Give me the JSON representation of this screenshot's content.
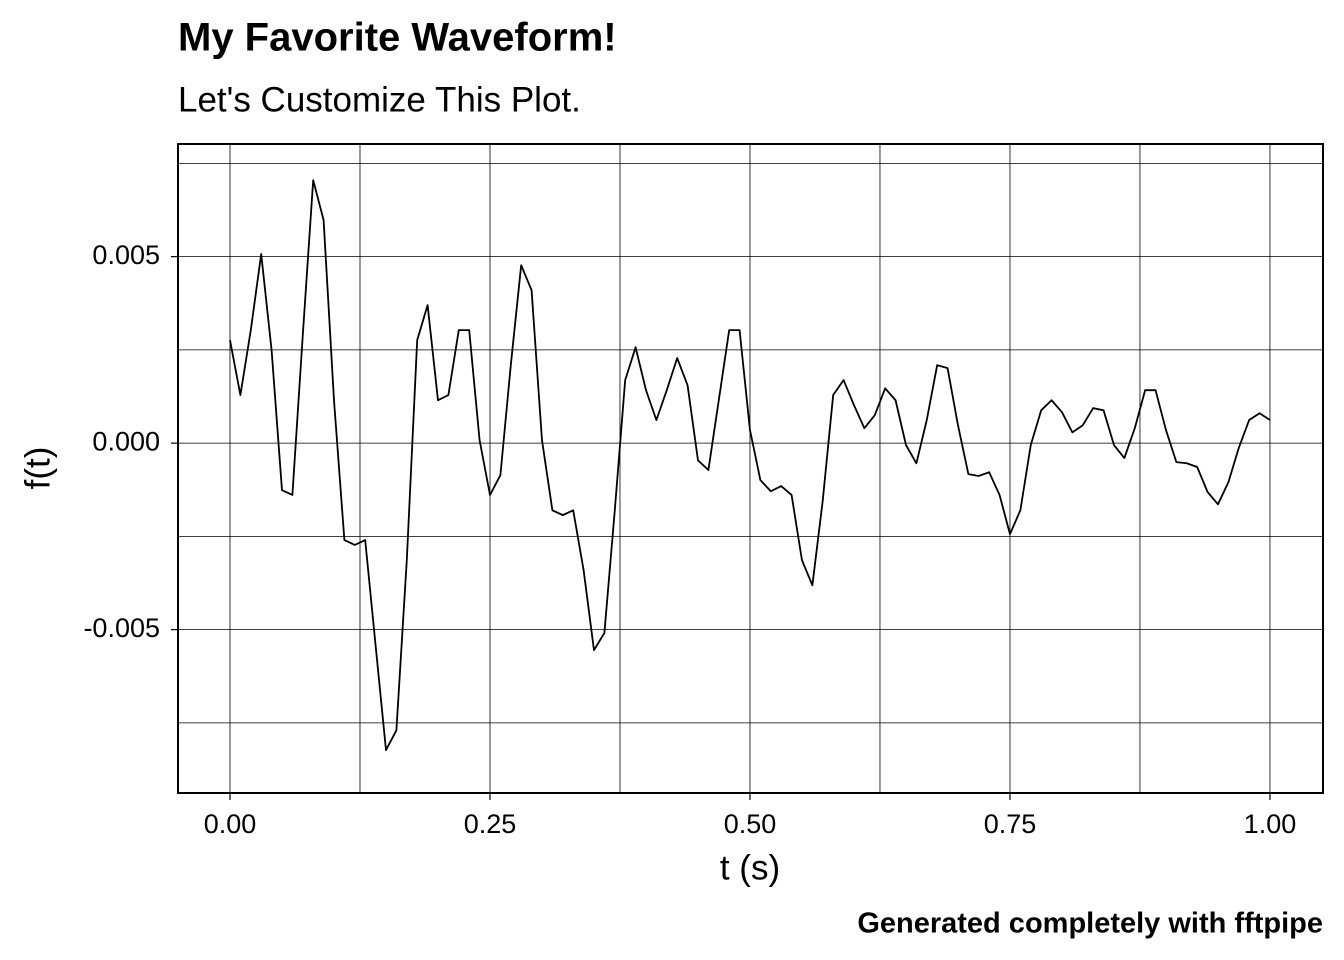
{
  "chart_data": {
    "type": "line",
    "title": "My Favorite Waveform!",
    "subtitle": "Let's Customize This Plot.",
    "x_label": "t (s)",
    "y_label": "f(t)",
    "caption": "Generated completely with fftpipe",
    "caption_color": "#0000ff",
    "x": [
      0,
      0.01,
      0.02,
      0.03,
      0.04,
      0.05,
      0.06,
      0.07,
      0.08,
      0.09,
      0.1,
      0.11,
      0.12,
      0.13,
      0.14,
      0.15,
      0.16,
      0.17,
      0.18,
      0.19,
      0.2,
      0.21,
      0.22,
      0.23,
      0.24,
      0.25,
      0.26,
      0.27,
      0.28,
      0.29,
      0.3,
      0.31,
      0.32,
      0.33,
      0.34,
      0.35,
      0.36,
      0.37,
      0.38,
      0.39,
      0.4,
      0.41,
      0.42,
      0.43,
      0.44,
      0.45,
      0.46,
      0.47,
      0.48,
      0.49,
      0.5,
      0.51,
      0.52,
      0.53,
      0.54,
      0.55,
      0.56,
      0.57,
      0.58,
      0.59,
      0.6,
      0.61,
      0.62,
      0.63,
      0.64,
      0.65,
      0.66,
      0.67,
      0.68,
      0.69,
      0.7,
      0.71,
      0.72,
      0.73,
      0.74,
      0.75,
      0.76,
      0.77,
      0.78,
      0.79,
      0.8,
      0.81,
      0.82,
      0.83,
      0.84,
      0.85,
      0.86,
      0.87,
      0.88,
      0.89,
      0.9,
      0.91,
      0.92,
      0.93,
      0.94,
      0.95,
      0.96,
      0.97,
      0.98,
      0.99,
      1
    ],
    "series": [
      {
        "color": "#000000",
        "values": [
          0.00276,
          0.00129,
          0.00303,
          0.00507,
          0.00249,
          -0.00126,
          -0.00139,
          0.0029,
          0.00705,
          0.00598,
          0.00115,
          -0.0026,
          -0.00273,
          -0.0026,
          -0.00542,
          -0.00823,
          -0.0077,
          -0.00314,
          0.00276,
          0.0037,
          0.00115,
          0.00129,
          0.00303,
          0.00303,
          8e-05,
          -0.00139,
          -0.00086,
          0.00209,
          0.00477,
          0.0041,
          8e-05,
          -0.0018,
          -0.00193,
          -0.0018,
          -0.0034,
          -0.00555,
          -0.00509,
          -0.0018,
          0.00169,
          0.00257,
          0.00142,
          0.00062,
          0.00142,
          0.00228,
          0.00155,
          -0.00046,
          -0.00072,
          0.00115,
          0.00303,
          0.00303,
          0.00035,
          -0.00099,
          -0.00129,
          -0.00115,
          -0.00139,
          -0.00314,
          -0.00381,
          -0.00153,
          0.00129,
          0.00169,
          0.00102,
          0.0004,
          0.00075,
          0.00147,
          0.00115,
          -5e-05,
          -0.00054,
          0.00062,
          0.00209,
          0.00201,
          0.00048,
          -0.00083,
          -0.00088,
          -0.00078,
          -0.00139,
          -0.00244,
          -0.0018,
          -5e-05,
          0.00088,
          0.00115,
          0.00083,
          0.00029,
          0.00048,
          0.00094,
          0.00088,
          -5e-05,
          -0.0004,
          0.0004,
          0.00142,
          0.00142,
          0.00035,
          -0.00051,
          -0.00054,
          -0.00064,
          -0.00131,
          -0.00164,
          -0.00105,
          -0.00013,
          0.00062,
          0.0008,
          0.00062
        ]
      }
    ],
    "xlim": [
      -0.05,
      1.051
    ],
    "ylim": [
      -0.00938,
      0.00802
    ],
    "xticks": [
      {
        "value": 0,
        "label": "0.00"
      },
      {
        "value": 0.25,
        "label": "0.25"
      },
      {
        "value": 0.5,
        "label": "0.50"
      },
      {
        "value": 0.75,
        "label": "0.75"
      },
      {
        "value": 1,
        "label": "1.00"
      }
    ],
    "yticks": [
      -0.005,
      {
        "value": 0,
        "label": "0.000"
      },
      0.005
    ],
    "xminor": [
      0.125,
      0.375,
      0.625,
      0.875
    ],
    "yminor": [
      -0.0075,
      -0.0025,
      0.0025,
      0.0075
    ],
    "grid": true
  }
}
